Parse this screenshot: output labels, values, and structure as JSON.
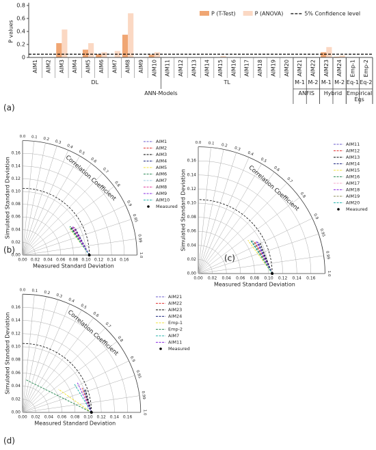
{
  "chart_data": [
    {
      "type": "bar",
      "label": "(a)",
      "ylabel": "P values",
      "categories": [
        "AIM1",
        "AIM2",
        "AIM3",
        "AIM4",
        "AIM5",
        "AIM6",
        "AIM7",
        "AIM8",
        "AIM9",
        "AIM10",
        "AIM11",
        "AIM12",
        "AIM13",
        "AIM14",
        "AIM15",
        "AIM16",
        "AIM17",
        "AIM18",
        "AIM19",
        "AIM20",
        "AIM21",
        "AIM22",
        "AIM23",
        "AIM24",
        "Emp-1",
        "Emp-2"
      ],
      "series": [
        {
          "name": "P (T-Test)",
          "color": "#f0a673",
          "values": [
            0,
            0,
            0.22,
            0,
            0.12,
            0.05,
            0,
            0.35,
            0,
            0.04,
            0,
            0,
            0,
            0,
            0,
            0,
            0,
            0,
            0,
            0,
            0,
            0,
            0.08,
            0.01,
            0,
            0
          ]
        },
        {
          "name": "P (ANOVA)",
          "color": "#fbd8c3",
          "values": [
            0,
            0,
            0.43,
            0,
            0.22,
            0.08,
            0.1,
            0.68,
            0,
            0.08,
            0,
            0,
            0,
            0,
            0.02,
            0,
            0,
            0,
            0,
            0,
            0,
            0,
            0.16,
            0.03,
            0,
            0
          ]
        }
      ],
      "reference_line": {
        "name": "5% Confidence level",
        "value": 0.05,
        "color": "#000000"
      },
      "group_rows": [
        [
          {
            "label": "DL",
            "span": 10
          },
          {
            "label": "TL",
            "span": 10
          },
          {
            "label": "M-1",
            "span": 1
          },
          {
            "label": "M-2",
            "span": 1
          },
          {
            "label": "M-1",
            "span": 1
          },
          {
            "label": "M-2",
            "span": 1
          },
          {
            "label": "Eq-1",
            "span": 1
          },
          {
            "label": "Eq-2",
            "span": 1
          }
        ],
        [
          {
            "label": "ANN-Models",
            "span": 20
          },
          {
            "label": "ANFIS",
            "span": 2
          },
          {
            "label": "Hybrid",
            "span": 2
          },
          {
            "label": "Empirical Eqs",
            "span": 2
          }
        ]
      ],
      "ylim": [
        0,
        0.8
      ],
      "yticks": [
        0,
        0.2,
        0.4,
        0.6,
        0.8
      ],
      "legend": "upper right"
    },
    {
      "type": "taylor",
      "label": "(b)",
      "xlabel": "Measured Standard Deviation",
      "ylabel": "Simulated Standard Deviation",
      "corr_label": "Correlation Coefficient",
      "stdlim": [
        0,
        0.18
      ],
      "std_ticks": [
        {
          "value": 0,
          "label": "0.00"
        },
        {
          "value": 0.02,
          "label": "0.02"
        },
        {
          "value": 0.04,
          "label": "0.04"
        },
        {
          "value": 0.06,
          "label": "0.06"
        },
        {
          "value": 0.08,
          "label": "0.08"
        },
        {
          "value": 0.1,
          "label": "0.10"
        },
        {
          "value": 0.12,
          "label": "0.12"
        },
        {
          "value": 0.14,
          "label": "0.14"
        },
        {
          "value": 0.16,
          "label": "0.16"
        }
      ],
      "corr_ticks": [
        {
          "value": 0,
          "label": "0.0"
        },
        0.1,
        0.2,
        0.3,
        0.4,
        0.5,
        0.6,
        0.7,
        0.8,
        0.9,
        0.95,
        0.99,
        {
          "value": 1,
          "label": "1.0"
        }
      ],
      "series": [
        {
          "name": "AIM1",
          "color": "#6a5acd",
          "std": 0.09,
          "corr": 0.87
        },
        {
          "name": "AIM2",
          "color": "#e03030",
          "std": 0.092,
          "corr": 0.88
        },
        {
          "name": "AIM3",
          "color": "#000000",
          "std": 0.088,
          "corr": 0.86
        },
        {
          "name": "AIM4",
          "color": "#1a237e",
          "std": 0.093,
          "corr": 0.885
        },
        {
          "name": "AIM5",
          "color": "#f2e23a",
          "std": 0.085,
          "corr": 0.87
        },
        {
          "name": "AIM6",
          "color": "#2e8b57",
          "std": 0.087,
          "corr": 0.855
        },
        {
          "name": "AIM7",
          "color": "#9ecae1",
          "std": 0.09,
          "corr": 0.875
        },
        {
          "name": "AIM8",
          "color": "#e040a0",
          "std": 0.089,
          "corr": 0.865
        },
        {
          "name": "AIM9",
          "color": "#8a2be2",
          "std": 0.091,
          "corr": 0.87
        },
        {
          "name": "AIM10",
          "color": "#20b2aa",
          "std": 0.086,
          "corr": 0.86
        },
        {
          "name": "Measured",
          "color": "#000000",
          "std": 0.105,
          "corr": 1,
          "marker": "point"
        }
      ]
    },
    {
      "type": "taylor",
      "label": "(c)",
      "xlabel": "Measured Standard Deviation",
      "ylabel": "Simulated Standard Deviation",
      "corr_label": "Correlation Coefficient",
      "stdlim": [
        0,
        0.18
      ],
      "std_ticks": [
        {
          "value": 0,
          "label": "0.00"
        },
        {
          "value": 0.02,
          "label": "0.02"
        },
        {
          "value": 0.04,
          "label": "0.04"
        },
        {
          "value": 0.06,
          "label": "0.06"
        },
        {
          "value": 0.08,
          "label": "0.08"
        },
        {
          "value": 0.1,
          "label": "0.10"
        },
        {
          "value": 0.12,
          "label": "0.12"
        },
        {
          "value": 0.14,
          "label": "0.14"
        },
        {
          "value": 0.16,
          "label": "0.16"
        }
      ],
      "corr_ticks": [
        {
          "value": 0,
          "label": "0.0"
        },
        0.1,
        0.2,
        0.3,
        0.4,
        0.5,
        0.6,
        0.7,
        0.8,
        0.9,
        0.95,
        0.99,
        {
          "value": 1,
          "label": "1.0"
        }
      ],
      "series": [
        {
          "name": "AIM11",
          "color": "#6a5acd",
          "std": 0.095,
          "corr": 0.88
        },
        {
          "name": "AIM12",
          "color": "#e03030",
          "std": 0.092,
          "corr": 0.87
        },
        {
          "name": "AIM13",
          "color": "#000000",
          "std": 0.098,
          "corr": 0.89
        },
        {
          "name": "AIM14",
          "color": "#1a237e",
          "std": 0.096,
          "corr": 0.885
        },
        {
          "name": "AIM15",
          "color": "#f2e23a",
          "std": 0.085,
          "corr": 0.83
        },
        {
          "name": "AIM16",
          "color": "#2e8b57",
          "std": 0.088,
          "corr": 0.84
        },
        {
          "name": "AIM17",
          "color": "#f7a8c8",
          "std": 0.09,
          "corr": 0.85
        },
        {
          "name": "AIM18",
          "color": "#8a2be2",
          "std": 0.094,
          "corr": 0.875
        },
        {
          "name": "AIM19",
          "color": "#8c8c5a",
          "std": 0.091,
          "corr": 0.86
        },
        {
          "name": "AIM20",
          "color": "#20b2aa",
          "std": 0.089,
          "corr": 0.85
        },
        {
          "name": "Measured",
          "color": "#000000",
          "std": 0.105,
          "corr": 1,
          "marker": "point"
        }
      ]
    },
    {
      "type": "taylor",
      "label": "(d)",
      "xlabel": "Measured Standard Deviation",
      "ylabel": "Simulated Standard Deviation",
      "corr_label": "Correlation Coefficient",
      "stdlim": [
        0,
        0.18
      ],
      "std_ticks": [
        {
          "value": 0,
          "label": "0.00"
        },
        {
          "value": 0.02,
          "label": "0.02"
        },
        {
          "value": 0.04,
          "label": "0.04"
        },
        {
          "value": 0.06,
          "label": "0.06"
        },
        {
          "value": 0.08,
          "label": "0.08"
        },
        {
          "value": 0.1,
          "label": "0.10"
        },
        {
          "value": 0.12,
          "label": "0.12"
        },
        {
          "value": 0.14,
          "label": "0.14"
        },
        {
          "value": 0.16,
          "label": "0.16"
        }
      ],
      "corr_ticks": [
        {
          "value": 0,
          "label": "0.0"
        },
        0.1,
        0.2,
        0.3,
        0.4,
        0.5,
        0.6,
        0.7,
        0.8,
        0.9,
        0.95,
        0.99,
        {
          "value": 1,
          "label": "1.0"
        }
      ],
      "series": [
        {
          "name": "AIM21",
          "color": "#6a5acd",
          "std": 0.1,
          "corr": 0.93
        },
        {
          "name": "AIM22",
          "color": "#e03030",
          "std": 0.098,
          "corr": 0.925
        },
        {
          "name": "AIM23",
          "color": "#000000",
          "std": 0.102,
          "corr": 0.94
        },
        {
          "name": "AIM24",
          "color": "#1a237e",
          "std": 0.1,
          "corr": 0.935
        },
        {
          "name": "Emp-1",
          "color": "#f2e23a",
          "std": 0.065,
          "corr": 0.84
        },
        {
          "name": "Emp-2",
          "color": "#2e8b57",
          "std": 0.05,
          "corr": 0.1
        },
        {
          "name": "AIM7",
          "color": "#20b2aa",
          "std": 0.09,
          "corr": 0.875
        },
        {
          "name": "AIM11",
          "color": "#8a2be2",
          "std": 0.095,
          "corr": 0.88
        },
        {
          "name": "Measured",
          "color": "#000000",
          "std": 0.105,
          "corr": 1,
          "marker": "point"
        }
      ]
    }
  ]
}
